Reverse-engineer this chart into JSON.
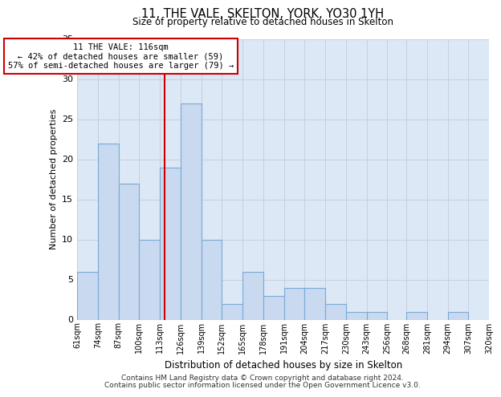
{
  "title": "11, THE VALE, SKELTON, YORK, YO30 1YH",
  "subtitle": "Size of property relative to detached houses in Skelton",
  "xlabel": "Distribution of detached houses by size in Skelton",
  "ylabel": "Number of detached properties",
  "bar_labels": [
    "61sqm",
    "74sqm",
    "87sqm",
    "100sqm",
    "113sqm",
    "126sqm",
    "139sqm",
    "152sqm",
    "165sqm",
    "178sqm",
    "191sqm",
    "204sqm",
    "217sqm",
    "230sqm",
    "243sqm",
    "256sqm",
    "268sqm",
    "281sqm",
    "294sqm",
    "307sqm",
    "320sqm"
  ],
  "bar_values": [
    6,
    22,
    17,
    10,
    19,
    27,
    10,
    2,
    6,
    3,
    4,
    4,
    2,
    1,
    1,
    0,
    1,
    0,
    1,
    0
  ],
  "bin_edges": [
    61,
    74,
    87,
    100,
    113,
    126,
    139,
    152,
    165,
    178,
    191,
    204,
    217,
    230,
    243,
    256,
    268,
    281,
    294,
    307,
    320
  ],
  "bar_color": "#c8d9f0",
  "bar_edge_color": "#7aaad4",
  "vline_x": 116,
  "vline_color": "#cc0000",
  "annotation_line1": "11 THE VALE: 116sqm",
  "annotation_line2": "← 42% of detached houses are smaller (59)",
  "annotation_line3": "57% of semi-detached houses are larger (79) →",
  "annotation_box_color": "#ffffff",
  "annotation_box_edge_color": "#cc0000",
  "ylim": [
    0,
    35
  ],
  "yticks": [
    0,
    5,
    10,
    15,
    20,
    25,
    30,
    35
  ],
  "grid_color": "#c8d0dc",
  "background_color": "#dce8f5",
  "footer_line1": "Contains HM Land Registry data © Crown copyright and database right 2024.",
  "footer_line2": "Contains public sector information licensed under the Open Government Licence v3.0."
}
